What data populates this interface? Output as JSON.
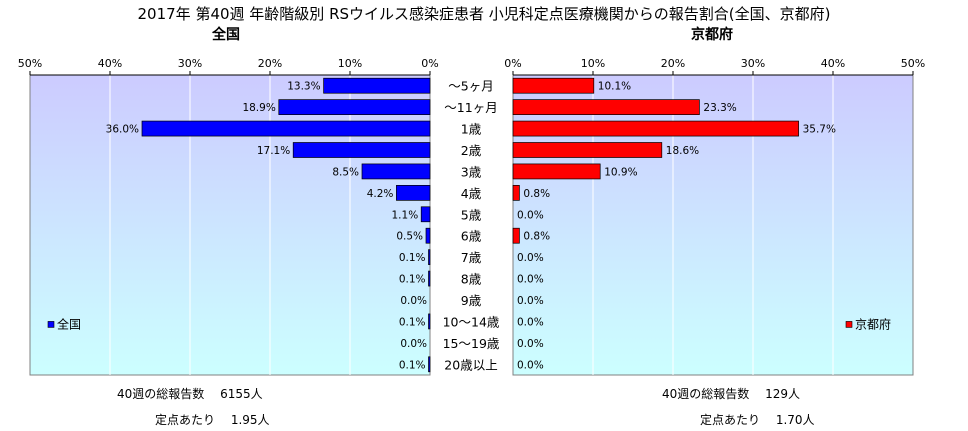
{
  "title": "2017年 第40週 年齢階級別 RSウイルス感染症患者 小児科定点医療機関からの報告割合(全国、京都府)",
  "left_subtitle": "全国",
  "right_subtitle": "京都府",
  "colors": {
    "national": "#0000ff",
    "kyoto": "#ff0000",
    "plot_bg_top": "#cccbff",
    "plot_bg_bottom": "#ccffff",
    "border": "#808080"
  },
  "chart_data": [
    {
      "type": "bar",
      "orientation": "horizontal",
      "direction": "right-to-left",
      "title": "全国",
      "categories": [
        "～5ヶ月",
        "～11ヶ月",
        "1歳",
        "2歳",
        "3歳",
        "4歳",
        "5歳",
        "6歳",
        "7歳",
        "8歳",
        "9歳",
        "10～14歳",
        "15～19歳",
        "20歳以上"
      ],
      "series": [
        {
          "name": "全国",
          "values": [
            13.3,
            18.9,
            36.0,
            17.1,
            8.5,
            4.2,
            1.1,
            0.5,
            0.1,
            0.1,
            0.0,
            0.1,
            0.0,
            0.1
          ],
          "labels": [
            "13.3%",
            "18.9%",
            "36.0%",
            "17.1%",
            "8.5%",
            "4.2%",
            "1.1%",
            "0.5%",
            "0.1%",
            "0.1%",
            "0.0%",
            "0.1%",
            "0.0%",
            "0.1%"
          ]
        }
      ],
      "xticks": [
        "50%",
        "40%",
        "30%",
        "20%",
        "10%",
        "0%"
      ],
      "xlim": [
        0,
        50
      ],
      "legend": "bottom-left",
      "grid": true
    },
    {
      "type": "bar",
      "orientation": "horizontal",
      "direction": "left-to-right",
      "title": "京都府",
      "categories": [
        "～5ヶ月",
        "～11ヶ月",
        "1歳",
        "2歳",
        "3歳",
        "4歳",
        "5歳",
        "6歳",
        "7歳",
        "8歳",
        "9歳",
        "10～14歳",
        "15～19歳",
        "20歳以上"
      ],
      "series": [
        {
          "name": "京都府",
          "values": [
            10.1,
            23.3,
            35.7,
            18.6,
            10.9,
            0.8,
            0.0,
            0.8,
            0.0,
            0.0,
            0.0,
            0.0,
            0.0,
            0.0
          ],
          "labels": [
            "10.1%",
            "23.3%",
            "35.7%",
            "18.6%",
            "10.9%",
            "0.8%",
            "0.0%",
            "0.8%",
            "0.0%",
            "0.0%",
            "0.0%",
            "0.0%",
            "0.0%",
            "0.0%"
          ]
        }
      ],
      "xticks": [
        "0%",
        "10%",
        "20%",
        "30%",
        "40%",
        "50%"
      ],
      "xlim": [
        0,
        50
      ],
      "legend": "bottom-right",
      "grid": true
    }
  ],
  "footer": {
    "left_total": "40週の総報告数　 6155人",
    "left_per": "定点あたり　 1.95人",
    "right_total": "40週の総報告数　 129人",
    "right_per": "定点あたり　 1.70人"
  }
}
